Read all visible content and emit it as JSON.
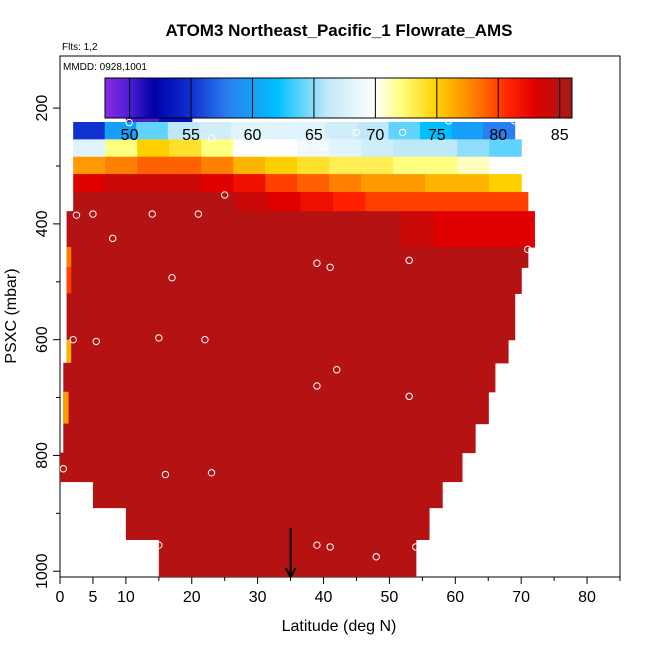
{
  "chart_data": {
    "type": "heatmap",
    "title": "ATOM3 Northeast_Pacific_1 Flowrate_AMS",
    "note_flights": "Flts: 1,2",
    "note_dates": "MMDD: 0928,1001",
    "xlabel": "Latitude (deg N)",
    "ylabel": "PSXC (mbar)",
    "xlim": [
      0,
      85
    ],
    "ylim": [
      1010,
      110
    ],
    "x_ticks": [
      0,
      5,
      10,
      20,
      30,
      40,
      50,
      60,
      70,
      80
    ],
    "y_ticks": [
      200,
      400,
      600,
      800,
      1000
    ],
    "color_scale": {
      "min": 48,
      "max": 86,
      "ticks": [
        50,
        55,
        60,
        65,
        70,
        75,
        80,
        85
      ],
      "stops": [
        {
          "v": 48,
          "c": "#8a2be2"
        },
        {
          "v": 50,
          "c": "#4b1fd6"
        },
        {
          "v": 52,
          "c": "#0000a8"
        },
        {
          "v": 55,
          "c": "#1030d0"
        },
        {
          "v": 58,
          "c": "#2a7ff0"
        },
        {
          "v": 62,
          "c": "#00bfff"
        },
        {
          "v": 66,
          "c": "#bfe8f8"
        },
        {
          "v": 70,
          "c": "#ffffff"
        },
        {
          "v": 72,
          "c": "#ffff80"
        },
        {
          "v": 75,
          "c": "#ffd000"
        },
        {
          "v": 78,
          "c": "#ff8000"
        },
        {
          "v": 81,
          "c": "#ff2000"
        },
        {
          "v": 83,
          "c": "#e00000"
        },
        {
          "v": 86,
          "c": "#a01c1c"
        }
      ]
    },
    "rows": [
      {
        "p": [
          168,
          203
        ],
        "x": [
          10,
          20
        ],
        "v": [
          50,
          52,
          51,
          49
        ]
      },
      {
        "p": [
          203,
          230
        ],
        "x": [
          10,
          20
        ],
        "v": [
          50,
          53
        ]
      },
      {
        "p": [
          224,
          254
        ],
        "x": [
          2,
          69
        ],
        "v": [
          55,
          60,
          64,
          66,
          67,
          68,
          68,
          68,
          67,
          66,
          64,
          62,
          60,
          58
        ]
      },
      {
        "p": [
          254,
          284
        ],
        "x": [
          2,
          70
        ],
        "v": [
          68,
          72,
          75,
          74,
          72,
          70,
          70,
          69,
          68,
          67,
          66,
          66,
          65,
          64
        ]
      },
      {
        "p": [
          284,
          314
        ],
        "x": [
          2,
          70
        ],
        "v": [
          77,
          78,
          79,
          79,
          78,
          76,
          75,
          74,
          73,
          73,
          72,
          72,
          71,
          70
        ]
      },
      {
        "p": [
          314,
          345
        ],
        "x": [
          2,
          70
        ],
        "v": [
          83,
          84,
          84,
          84,
          83,
          82,
          80,
          79,
          78,
          77,
          77,
          76,
          76,
          75
        ]
      },
      {
        "p": [
          345,
          378
        ],
        "x": [
          2,
          71
        ],
        "v": [
          85,
          85,
          85,
          85,
          85,
          84,
          83,
          82,
          81,
          80,
          80,
          80,
          80,
          80
        ]
      },
      {
        "p": [
          378,
          440
        ],
        "x": [
          1,
          72
        ],
        "v": [
          85,
          85,
          85,
          85,
          85,
          85,
          85,
          85,
          85,
          85,
          84,
          83,
          83,
          83
        ]
      },
      {
        "p": [
          440,
          475
        ],
        "x": [
          1,
          71
        ],
        "v": [
          85,
          85,
          85,
          85,
          85,
          85,
          85,
          85,
          85,
          85,
          85,
          85,
          85,
          85
        ]
      },
      {
        "p": [
          475,
          520
        ],
        "x": [
          1,
          70
        ],
        "v": [
          85,
          85,
          85,
          85,
          85,
          85,
          85,
          85,
          85,
          85,
          85,
          85,
          85,
          85
        ]
      },
      {
        "p": [
          520,
          560
        ],
        "x": [
          1,
          69
        ],
        "v": [
          85,
          85,
          85,
          85,
          85,
          85,
          85,
          85,
          85,
          85,
          85,
          85,
          85,
          85
        ]
      },
      {
        "p": [
          560,
          600
        ],
        "x": [
          1,
          69
        ],
        "v": [
          85,
          85,
          85,
          85,
          85,
          85,
          85,
          85,
          85,
          85,
          85,
          85,
          85,
          85
        ]
      },
      {
        "p": [
          600,
          640
        ],
        "x": [
          1,
          68
        ],
        "v": [
          85,
          85,
          85,
          85,
          85,
          85,
          85,
          85,
          85,
          85,
          85,
          85,
          85,
          85
        ]
      },
      {
        "p": [
          640,
          690
        ],
        "x": [
          0.5,
          66
        ],
        "v": [
          85,
          85,
          85,
          85,
          85,
          85,
          85,
          85,
          85,
          85,
          85,
          85,
          85,
          85
        ]
      },
      {
        "p": [
          690,
          745
        ],
        "x": [
          0.5,
          65
        ],
        "v": [
          85,
          85,
          85,
          85,
          85,
          85,
          85,
          85,
          85,
          85,
          85,
          85,
          85,
          85
        ]
      },
      {
        "p": [
          745,
          795
        ],
        "x": [
          0.5,
          63
        ],
        "v": [
          85,
          85,
          85,
          85,
          85,
          85,
          85,
          85,
          85,
          85,
          85,
          85,
          85,
          85
        ]
      },
      {
        "p": [
          795,
          845
        ],
        "x": [
          0,
          61
        ],
        "v": [
          85,
          85,
          85,
          85,
          85,
          85,
          85,
          85,
          85,
          85,
          85,
          85,
          85,
          85
        ]
      },
      {
        "p": [
          845,
          890
        ],
        "x": [
          5,
          58
        ],
        "v": [
          85,
          85,
          85,
          85,
          85,
          85,
          85,
          85,
          85,
          85,
          85,
          85,
          85,
          85
        ]
      },
      {
        "p": [
          890,
          945
        ],
        "x": [
          10,
          56
        ],
        "v": [
          85,
          85,
          85,
          85,
          85,
          85,
          85,
          85,
          85,
          85,
          85,
          85,
          85,
          85
        ]
      },
      {
        "p": [
          945,
          1010
        ],
        "x": [
          15,
          54
        ],
        "v": [
          85,
          85,
          85,
          85,
          85,
          85,
          85,
          85,
          85,
          85,
          85,
          85,
          85,
          85
        ]
      }
    ],
    "highlight_cells": [
      {
        "p": [
          440,
          475
        ],
        "x": [
          1,
          1.7
        ],
        "v": 78
      },
      {
        "p": [
          475,
          520
        ],
        "x": [
          1,
          1.7
        ],
        "v": 80
      },
      {
        "p": [
          600,
          640
        ],
        "x": [
          1,
          1.7
        ],
        "v": 76
      },
      {
        "p": [
          690,
          745
        ],
        "x": [
          0.5,
          1.3
        ],
        "v": 77
      }
    ],
    "points": [
      {
        "x": 2,
        "y": 210
      },
      {
        "x": 10,
        "y": 195
      },
      {
        "x": 10.5,
        "y": 225
      },
      {
        "x": 20,
        "y": 192
      },
      {
        "x": 23,
        "y": 252
      },
      {
        "x": 37,
        "y": 265
      },
      {
        "x": 40,
        "y": 267
      },
      {
        "x": 45,
        "y": 242
      },
      {
        "x": 52,
        "y": 242
      },
      {
        "x": 59,
        "y": 222
      },
      {
        "x": 69,
        "y": 222
      },
      {
        "x": 25,
        "y": 350
      },
      {
        "x": 2.5,
        "y": 385
      },
      {
        "x": 5,
        "y": 383
      },
      {
        "x": 14,
        "y": 383
      },
      {
        "x": 21,
        "y": 383
      },
      {
        "x": 8,
        "y": 425
      },
      {
        "x": 17,
        "y": 493
      },
      {
        "x": 39,
        "y": 468
      },
      {
        "x": 41,
        "y": 475
      },
      {
        "x": 53,
        "y": 463
      },
      {
        "x": 71,
        "y": 444
      },
      {
        "x": 2,
        "y": 600
      },
      {
        "x": 5.5,
        "y": 603
      },
      {
        "x": 15,
        "y": 597
      },
      {
        "x": 22,
        "y": 600
      },
      {
        "x": 42,
        "y": 652
      },
      {
        "x": 39,
        "y": 680
      },
      {
        "x": 53,
        "y": 698
      },
      {
        "x": 0.5,
        "y": 823
      },
      {
        "x": 16,
        "y": 833
      },
      {
        "x": 23,
        "y": 830
      },
      {
        "x": 15,
        "y": 955
      },
      {
        "x": 39,
        "y": 955
      },
      {
        "x": 41,
        "y": 958
      },
      {
        "x": 48,
        "y": 975
      },
      {
        "x": 54,
        "y": 958
      }
    ],
    "marker": {
      "x": 35,
      "y0": 925,
      "y1": 1010
    }
  }
}
